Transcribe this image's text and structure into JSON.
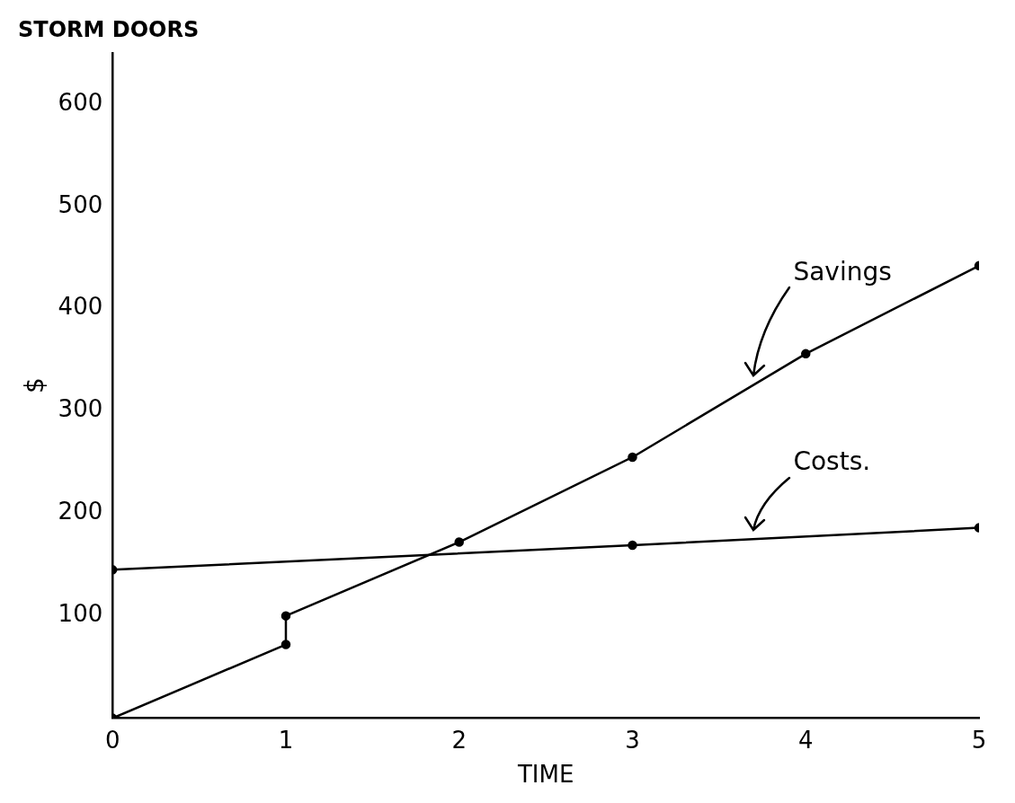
{
  "chart_data": {
    "type": "line",
    "title": "STORM DOORS",
    "xlabel": "TIME",
    "ylabel": "$",
    "xlim": [
      0,
      5
    ],
    "xticks": [
      0,
      1,
      2,
      3,
      4,
      5
    ],
    "ylim": [
      0,
      650
    ],
    "yticks": [
      100,
      200,
      300,
      400,
      500,
      600
    ],
    "grid": false,
    "legend": false,
    "marker": "circle",
    "line_style": "solid",
    "series": [
      {
        "name": "Savings",
        "color": "#000000",
        "x": [
          0,
          1,
          1,
          2,
          3,
          4,
          5
        ],
        "values": [
          0,
          72,
          100,
          172,
          255,
          356,
          442
        ]
      },
      {
        "name": "Costs.",
        "color": "#000000",
        "x": [
          0,
          3,
          5
        ],
        "values": [
          145,
          169,
          186
        ]
      }
    ]
  }
}
